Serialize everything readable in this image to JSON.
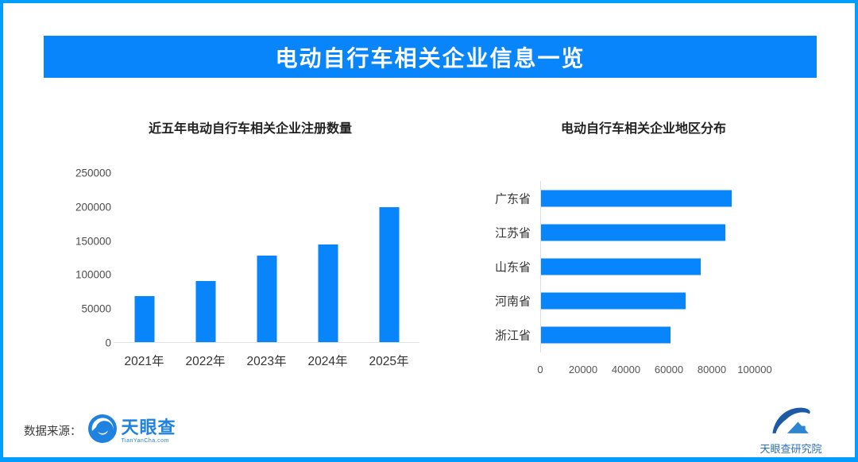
{
  "page": {
    "banner_title": "电动自行车相关企业信息一览"
  },
  "chart_data": [
    {
      "type": "bar",
      "orientation": "vertical",
      "title": "近五年电动自行车相关企业注册数量",
      "categories": [
        "2021年",
        "2022年",
        "2023年",
        "2024年",
        "2025年"
      ],
      "values": [
        68000,
        90000,
        128000,
        144000,
        199000
      ],
      "xlabel": "",
      "ylabel": "",
      "y_ticks": [
        0,
        50000,
        100000,
        150000,
        200000,
        250000
      ],
      "ylim": [
        0,
        250000
      ],
      "grid": false,
      "legend": false,
      "bar_color": "#0885fa"
    },
    {
      "type": "bar",
      "orientation": "horizontal",
      "title": "电动自行车相关企业地区分布",
      "categories": [
        "广东省",
        "江苏省",
        "山东省",
        "河南省",
        "浙江省"
      ],
      "values": [
        89000,
        86000,
        74500,
        67500,
        60500
      ],
      "xlabel": "",
      "ylabel": "",
      "x_ticks": [
        0,
        20000,
        40000,
        60000,
        80000,
        100000
      ],
      "xlim": [
        0,
        100000
      ],
      "grid": false,
      "legend": false,
      "bar_color": "#0885fa"
    }
  ],
  "footer": {
    "source_label": "数据来源：",
    "tianyancha_logo_text": "天眼查",
    "tianyancha_logo_sub": "TianYanCha.com",
    "institute_label": "天眼查研究院"
  },
  "colors": {
    "frame_border": "#009dff",
    "banner_bg": "#0885fa",
    "bar_fill": "#0885fa",
    "logo_blue": "#2082e0",
    "institute_blue": "#2d6fb8"
  }
}
